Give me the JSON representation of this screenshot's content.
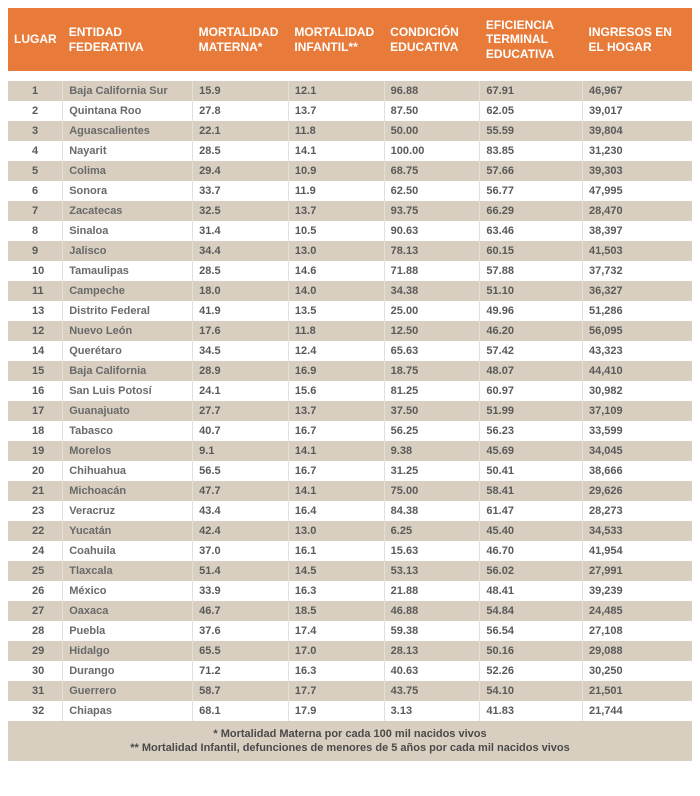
{
  "table": {
    "header_bg": "#e87b3a",
    "header_text_color": "#ffffff",
    "row_alt_bg": "#d8cfc0",
    "row_bg": "#ffffff",
    "cell_text_color": "#5a5a5a",
    "columns": [
      "LUGAR",
      "ENTIDAD FEDERATIVA",
      "MORTALIDAD MATERNA*",
      "MORTALIDAD INFANTIL**",
      "CONDICIÓN EDUCATIVA",
      "EFICIENCIA TERMINAL EDUCATIVA",
      "INGRESOS EN EL HOGAR"
    ],
    "rows": [
      [
        "1",
        "Baja California Sur",
        "15.9",
        "12.1",
        "96.88",
        "67.91",
        "46,967"
      ],
      [
        "2",
        "Quintana Roo",
        "27.8",
        "13.7",
        "87.50",
        "62.05",
        "39,017"
      ],
      [
        "3",
        "Aguascalientes",
        "22.1",
        "11.8",
        "50.00",
        "55.59",
        "39,804"
      ],
      [
        "4",
        "Nayarit",
        "28.5",
        "14.1",
        "100.00",
        "83.85",
        "31,230"
      ],
      [
        "5",
        "Colima",
        "29.4",
        "10.9",
        "68.75",
        "57.66",
        "39,303"
      ],
      [
        "6",
        "Sonora",
        "33.7",
        "11.9",
        "62.50",
        "56.77",
        "47,995"
      ],
      [
        "7",
        "Zacatecas",
        "32.5",
        "13.7",
        "93.75",
        "66.29",
        "28,470"
      ],
      [
        "8",
        "Sinaloa",
        "31.4",
        "10.5",
        "90.63",
        "63.46",
        "38,397"
      ],
      [
        "9",
        "Jalisco",
        "34.4",
        "13.0",
        "78.13",
        "60.15",
        "41,503"
      ],
      [
        "10",
        "Tamaulipas",
        "28.5",
        "14.6",
        "71.88",
        "57.88",
        "37,732"
      ],
      [
        "11",
        "Campeche",
        "18.0",
        "14.0",
        "34.38",
        "51.10",
        "36,327"
      ],
      [
        "13",
        "Distrito Federal",
        "41.9",
        "13.5",
        "25.00",
        "49.96",
        "51,286"
      ],
      [
        "12",
        "Nuevo León",
        "17.6",
        "11.8",
        "12.50",
        "46.20",
        "56,095"
      ],
      [
        "14",
        "Querétaro",
        "34.5",
        "12.4",
        "65.63",
        "57.42",
        "43,323"
      ],
      [
        "15",
        "Baja California",
        "28.9",
        "16.9",
        "18.75",
        "48.07",
        "44,410"
      ],
      [
        "16",
        "San Luis Potosí",
        "24.1",
        "15.6",
        "81.25",
        "60.97",
        "30,982"
      ],
      [
        "17",
        "Guanajuato",
        "27.7",
        "13.7",
        "37.50",
        "51.99",
        "37,109"
      ],
      [
        "18",
        "Tabasco",
        "40.7",
        "16.7",
        "56.25",
        "56.23",
        "33,599"
      ],
      [
        "19",
        "Morelos",
        "9.1",
        "14.1",
        "9.38",
        "45.69",
        "34,045"
      ],
      [
        "20",
        "Chihuahua",
        "56.5",
        "16.7",
        "31.25",
        "50.41",
        "38,666"
      ],
      [
        "21",
        "Michoacán",
        "47.7",
        "14.1",
        "75.00",
        "58.41",
        "29,626"
      ],
      [
        "23",
        "Veracruz",
        "43.4",
        "16.4",
        "84.38",
        "61.47",
        "28,273"
      ],
      [
        "22",
        "Yucatán",
        "42.4",
        "13.0",
        "6.25",
        "45.40",
        "34,533"
      ],
      [
        "24",
        "Coahuila",
        "37.0",
        "16.1",
        "15.63",
        "46.70",
        "41,954"
      ],
      [
        "25",
        "Tlaxcala",
        "51.4",
        "14.5",
        "53.13",
        "56.02",
        "27,991"
      ],
      [
        "26",
        "México",
        "33.9",
        "16.3",
        "21.88",
        "48.41",
        "39,239"
      ],
      [
        "27",
        "Oaxaca",
        "46.7",
        "18.5",
        "46.88",
        "54.84",
        "24,485"
      ],
      [
        "28",
        "Puebla",
        "37.6",
        "17.4",
        "59.38",
        "56.54",
        "27,108"
      ],
      [
        "29",
        "Hidalgo",
        "65.5",
        "17.0",
        "28.13",
        "50.16",
        "29,088"
      ],
      [
        "30",
        "Durango",
        "71.2",
        "16.3",
        "40.63",
        "52.26",
        "30,250"
      ],
      [
        "31",
        "Guerrero",
        "58.7",
        "17.7",
        "43.75",
        "54.10",
        "21,501"
      ],
      [
        "32",
        "Chiapas",
        "68.1",
        "17.9",
        "3.13",
        "41.83",
        "21,744"
      ]
    ]
  },
  "footnotes": {
    "note1": "* Mortalidad Materna por cada 100 mil nacidos vivos",
    "note2": "** Mortalidad Infantil, defunciones de menores de 5 años por cada mil nacidos vivos"
  }
}
